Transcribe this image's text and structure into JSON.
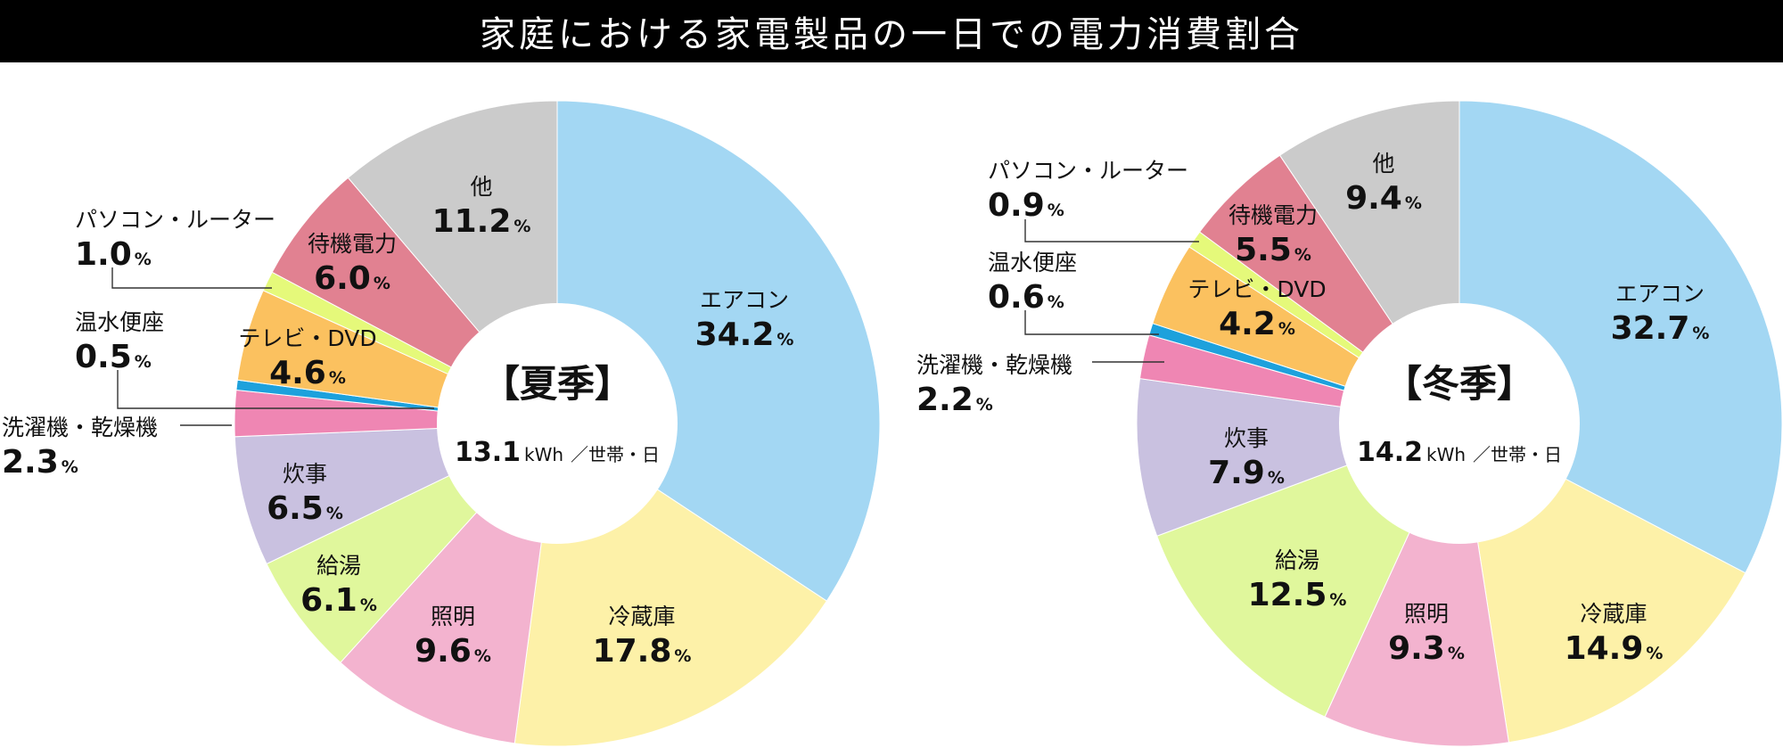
{
  "title": "家庭における家電製品の一日での電力消費割合",
  "chart_data": [
    {
      "type": "pie",
      "center_title": "【夏季】",
      "total": "13.1",
      "unit": "kWh",
      "per_unit": "／世帯・日",
      "value_suffix": "%",
      "slices": [
        {
          "label": "エアコン",
          "value": 34.2,
          "color": "#a3d7f3"
        },
        {
          "label": "冷蔵庫",
          "value": 17.8,
          "color": "#fdf1a8"
        },
        {
          "label": "照明",
          "value": 9.6,
          "color": "#f3b3cf"
        },
        {
          "label": "給湯",
          "value": 6.1,
          "color": "#e0f79c"
        },
        {
          "label": "炊事",
          "value": 6.5,
          "color": "#c9c1e0"
        },
        {
          "label": "洗濯機・乾燥機",
          "value": 2.3,
          "color": "#ef86b3"
        },
        {
          "label": "温水便座",
          "value": 0.5,
          "color": "#1da1dc"
        },
        {
          "label": "テレビ・DVD",
          "value": 4.6,
          "color": "#fbc15f"
        },
        {
          "label": "パソコン・ルーター",
          "value": 1.0,
          "color": "#e5f97a"
        },
        {
          "label": "待機電力",
          "value": 6.0,
          "color": "#e18191"
        },
        {
          "label": "他",
          "value": 11.2,
          "color": "#cbcbcb"
        }
      ]
    },
    {
      "type": "pie",
      "center_title": "【冬季】",
      "total": "14.2",
      "unit": "kWh",
      "per_unit": "／世帯・日",
      "value_suffix": "%",
      "slices": [
        {
          "label": "エアコン",
          "value": 32.7,
          "color": "#a3d7f3"
        },
        {
          "label": "冷蔵庫",
          "value": 14.9,
          "color": "#fdf1a8"
        },
        {
          "label": "照明",
          "value": 9.3,
          "color": "#f3b3cf"
        },
        {
          "label": "給湯",
          "value": 12.5,
          "color": "#e0f79c"
        },
        {
          "label": "炊事",
          "value": 7.9,
          "color": "#c9c1e0"
        },
        {
          "label": "洗濯機・乾燥機",
          "value": 2.2,
          "color": "#ef86b3"
        },
        {
          "label": "温水便座",
          "value": 0.6,
          "color": "#1da1dc"
        },
        {
          "label": "テレビ・DVD",
          "value": 4.2,
          "color": "#fbc15f"
        },
        {
          "label": "パソコン・ルーター",
          "value": 0.9,
          "color": "#e5f97a"
        },
        {
          "label": "待機電力",
          "value": 5.5,
          "color": "#e18191"
        },
        {
          "label": "他",
          "value": 9.4,
          "color": "#cbcbcb"
        }
      ]
    }
  ]
}
